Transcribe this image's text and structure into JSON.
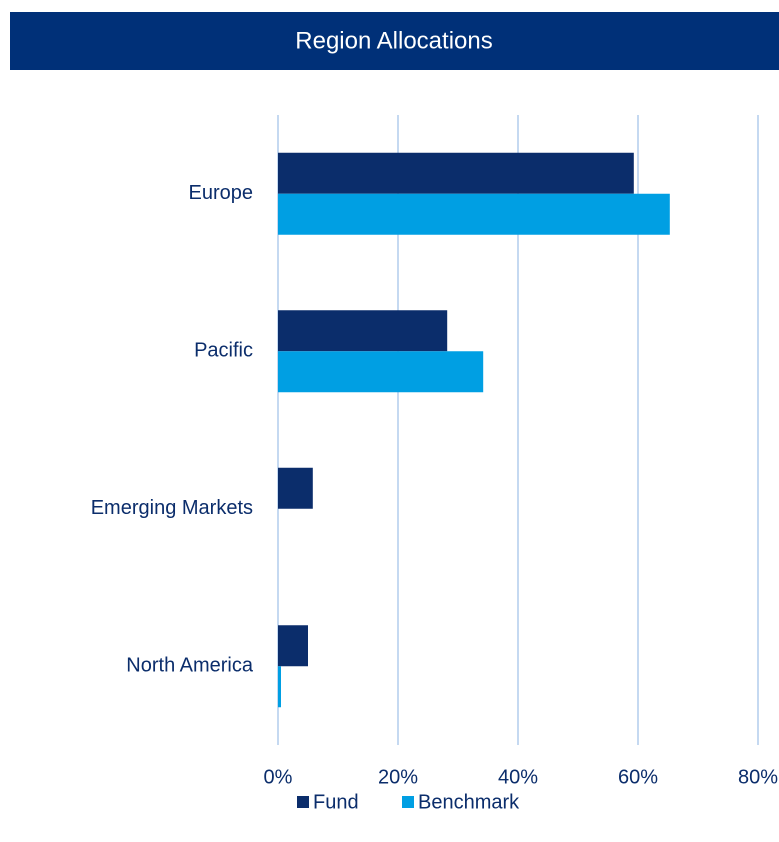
{
  "chart_data": {
    "type": "bar",
    "orientation": "horizontal",
    "title": "Region Allocations",
    "categories": [
      "Europe",
      "Pacific",
      "Emerging Markets",
      "North America"
    ],
    "series": [
      {
        "name": "Fund",
        "color": "#0b2d6b",
        "values": [
          59.3,
          28.2,
          5.8,
          5.0
        ]
      },
      {
        "name": "Benchmark",
        "color": "#009fe3",
        "values": [
          65.3,
          34.2,
          0,
          0.5
        ]
      }
    ],
    "xlim": [
      0,
      80
    ],
    "xticks": [
      {
        "value": 0,
        "label": "0%"
      },
      {
        "value": 20,
        "label": "20%"
      },
      {
        "value": 40,
        "label": "40%"
      },
      {
        "value": 60,
        "label": "60%"
      },
      {
        "value": 80,
        "label": "80%"
      }
    ],
    "grid": true,
    "legend": "bottom"
  }
}
